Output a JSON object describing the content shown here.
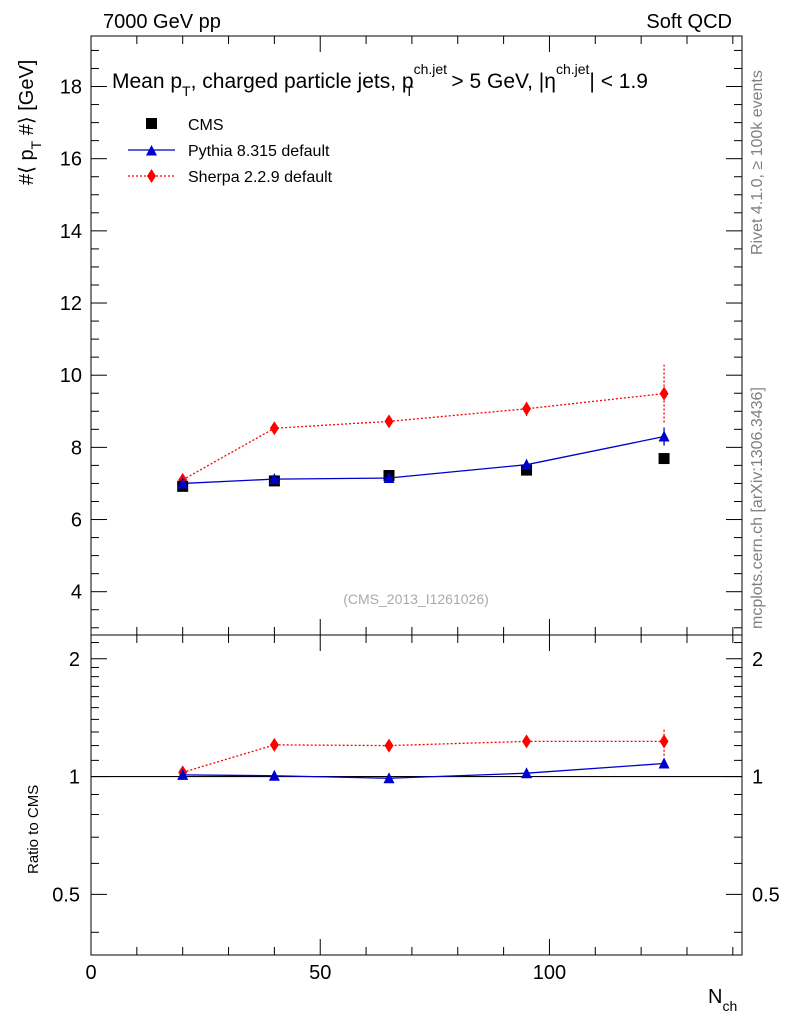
{
  "header": {
    "left": "7000 GeV pp",
    "right": "Soft QCD"
  },
  "side": {
    "rivet": "Rivet 4.1.0, ≥ 100k events",
    "mcplots": "mcplots.cern.ch [arXiv:1306.3436]"
  },
  "watermark": "(CMS_2013_I1261026)",
  "title": {
    "pre": "Mean p",
    "sub1": "T",
    "mid": ", charged particle jets, p",
    "sup2": "ch.jet",
    "sub2": "T",
    "mid2": " > 5 GeV,  |η",
    "sup3": "ch.jet",
    "post": "| < 1.9"
  },
  "legend": [
    "CMS",
    "Pythia 8.315 default",
    "Sherpa 2.2.9 default"
  ],
  "colors": {
    "cms": "#000000",
    "pythia": "#0000cc",
    "sherpa": "#ff0000"
  },
  "chart_data": {
    "type": "line",
    "x_label": "N",
    "x_label_sub": "ch",
    "y_label": "#⟨ p",
    "y_label_sub": "T",
    "y_label_post": " #⟩ [GeV]",
    "ratio_label": "Ratio to CMS",
    "xlim": [
      0,
      142
    ],
    "ylim": [
      2.8,
      19.4
    ],
    "ratio_ylim": [
      0.35,
      2.3
    ],
    "x_ticks": [
      0,
      50,
      100
    ],
    "y_ticks": [
      4,
      6,
      8,
      10,
      12,
      14,
      16,
      18
    ],
    "ratio_ticks": [
      0.5,
      1,
      2
    ],
    "ratio_tick_labels": [
      "0.5",
      "1",
      "2"
    ],
    "series": [
      {
        "name": "CMS",
        "x": [
          20,
          40,
          65,
          95,
          125
        ],
        "y": [
          6.92,
          7.07,
          7.22,
          7.37,
          7.69
        ],
        "err": [
          0.05,
          0.05,
          0.06,
          0.08,
          0.1
        ]
      },
      {
        "name": "Pythia 8.315 default",
        "x": [
          20,
          40,
          65,
          95,
          125
        ],
        "y": [
          7.0,
          7.12,
          7.15,
          7.52,
          8.3
        ],
        "err": [
          0.03,
          0.04,
          0.06,
          0.1,
          0.25
        ],
        "ratio": [
          1.01,
          1.005,
          0.99,
          1.02,
          1.08
        ],
        "ratio_err": [
          0.005,
          0.006,
          0.008,
          0.013,
          0.03
        ]
      },
      {
        "name": "Sherpa 2.2.9 default",
        "x": [
          20,
          40,
          65,
          95,
          125
        ],
        "y": [
          7.1,
          8.53,
          8.72,
          9.07,
          9.49
        ],
        "err": [
          0.05,
          0.06,
          0.08,
          0.2,
          0.8
        ],
        "ratio": [
          1.025,
          1.205,
          1.2,
          1.23,
          1.23
        ],
        "ratio_err": [
          0.008,
          0.01,
          0.012,
          0.03,
          0.1
        ]
      }
    ]
  }
}
